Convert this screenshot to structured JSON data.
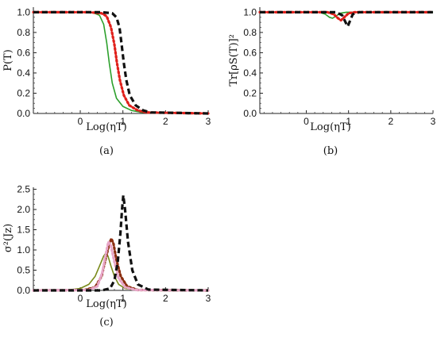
{
  "chart_data": [
    {
      "type": "line",
      "caption": "(a)",
      "xlabel": "Log(ηT)",
      "ylabel": "P(T)",
      "xlim": [
        -1.1,
        3
      ],
      "ylim": [
        0,
        1.05
      ],
      "xticks": [
        "0",
        "1",
        "2",
        "3"
      ],
      "yticks": [
        "0.0",
        "0.2",
        "0.4",
        "0.6",
        "0.8",
        "1.0"
      ],
      "grid": false,
      "series": [
        {
          "style": "solid",
          "color": "#2ca02c",
          "x": [
            -1.1,
            0.0,
            0.3,
            0.45,
            0.55,
            0.62,
            0.68,
            0.75,
            0.85,
            1.0,
            1.2,
            1.45,
            3.0
          ],
          "y": [
            1.0,
            1.0,
            0.995,
            0.97,
            0.88,
            0.7,
            0.5,
            0.3,
            0.15,
            0.07,
            0.03,
            0.01,
            0.0
          ]
        },
        {
          "style": "dotted",
          "color": "#e0201b",
          "x": [
            -1.1,
            0.2,
            0.5,
            0.62,
            0.72,
            0.8,
            0.86,
            0.93,
            1.02,
            1.15,
            1.35,
            1.55,
            3.0
          ],
          "y": [
            1.0,
            1.0,
            0.99,
            0.96,
            0.85,
            0.68,
            0.5,
            0.33,
            0.18,
            0.08,
            0.03,
            0.01,
            0.0
          ]
        },
        {
          "style": "dashed",
          "color": "#111111",
          "x": [
            -1.1,
            0.5,
            0.75,
            0.85,
            0.92,
            0.97,
            1.02,
            1.08,
            1.16,
            1.3,
            1.48,
            1.65,
            3.0
          ],
          "y": [
            1.0,
            1.0,
            0.99,
            0.95,
            0.85,
            0.68,
            0.5,
            0.33,
            0.18,
            0.08,
            0.03,
            0.01,
            0.0
          ]
        }
      ]
    },
    {
      "type": "line",
      "caption": "(b)",
      "xlabel": "Log(ηT)",
      "ylabel": "Tr[ρS(T)]²",
      "xlim": [
        -1.1,
        3
      ],
      "ylim": [
        0,
        1.05
      ],
      "xticks": [
        "0",
        "1",
        "2",
        "3"
      ],
      "yticks": [
        "0.0",
        "0.2",
        "0.4",
        "0.6",
        "0.8",
        "1.0"
      ],
      "grid": false,
      "series": [
        {
          "style": "solid",
          "color": "#2ca02c",
          "x": [
            -1.1,
            0.3,
            0.45,
            0.55,
            0.62,
            0.7,
            0.8,
            0.95,
            3.0
          ],
          "y": [
            1.0,
            1.0,
            0.98,
            0.95,
            0.94,
            0.96,
            0.99,
            1.0,
            1.0
          ]
        },
        {
          "style": "dotted",
          "color": "#e0201b",
          "x": [
            -1.1,
            0.5,
            0.65,
            0.75,
            0.82,
            0.9,
            1.0,
            1.15,
            3.0
          ],
          "y": [
            1.0,
            1.0,
            0.98,
            0.94,
            0.92,
            0.95,
            0.99,
            1.0,
            1.0
          ]
        },
        {
          "style": "dashed",
          "color": "#111111",
          "x": [
            -1.1,
            0.7,
            0.85,
            0.93,
            0.98,
            1.03,
            1.1,
            1.25,
            3.0
          ],
          "y": [
            1.0,
            1.0,
            0.97,
            0.9,
            0.86,
            0.91,
            0.98,
            1.0,
            1.0
          ]
        }
      ]
    },
    {
      "type": "line",
      "caption": "(c)",
      "xlabel": "Log(ηT)",
      "ylabel": "σ²(Jz)",
      "xlim": [
        -1.1,
        3
      ],
      "ylim": [
        0,
        2.55
      ],
      "xticks": [
        "0",
        "1",
        "2",
        "3"
      ],
      "yticks": [
        "0.0",
        "0.5",
        "1.0",
        "1.5",
        "2.0",
        "2.5"
      ],
      "grid": false,
      "series": [
        {
          "style": "solid",
          "color": "#7a8a1a",
          "x": [
            -1.1,
            -0.3,
            0.0,
            0.2,
            0.35,
            0.45,
            0.55,
            0.6,
            0.65,
            0.72,
            0.8,
            0.9,
            1.05,
            1.3,
            3.0
          ],
          "y": [
            0.0,
            0.01,
            0.05,
            0.15,
            0.35,
            0.6,
            0.85,
            0.92,
            0.85,
            0.6,
            0.35,
            0.15,
            0.05,
            0.01,
            0.0
          ]
        },
        {
          "style": "dotted",
          "color": "#8b2e10",
          "x": [
            -1.1,
            0.1,
            0.35,
            0.5,
            0.6,
            0.68,
            0.73,
            0.78,
            0.85,
            0.95,
            1.1,
            1.35,
            3.0
          ],
          "y": [
            0.0,
            0.01,
            0.08,
            0.35,
            0.8,
            1.15,
            1.28,
            1.15,
            0.75,
            0.35,
            0.1,
            0.01,
            0.0
          ]
        },
        {
          "style": "dotted",
          "color": "#e8a6c8",
          "x": [
            -1.1,
            0.2,
            0.4,
            0.52,
            0.6,
            0.66,
            0.72,
            0.8,
            0.9,
            1.05,
            1.3,
            3.0
          ],
          "y": [
            0.0,
            0.01,
            0.1,
            0.45,
            0.9,
            1.2,
            1.1,
            0.7,
            0.3,
            0.08,
            0.01,
            0.0
          ]
        },
        {
          "style": "dashed",
          "color": "#111111",
          "x": [
            -1.1,
            0.5,
            0.7,
            0.8,
            0.88,
            0.94,
            0.98,
            1.01,
            1.05,
            1.12,
            1.22,
            1.35,
            1.6,
            3.0
          ],
          "y": [
            0.0,
            0.0,
            0.05,
            0.25,
            0.7,
            1.4,
            2.0,
            2.35,
            2.0,
            1.2,
            0.5,
            0.15,
            0.02,
            0.0
          ]
        }
      ]
    }
  ]
}
